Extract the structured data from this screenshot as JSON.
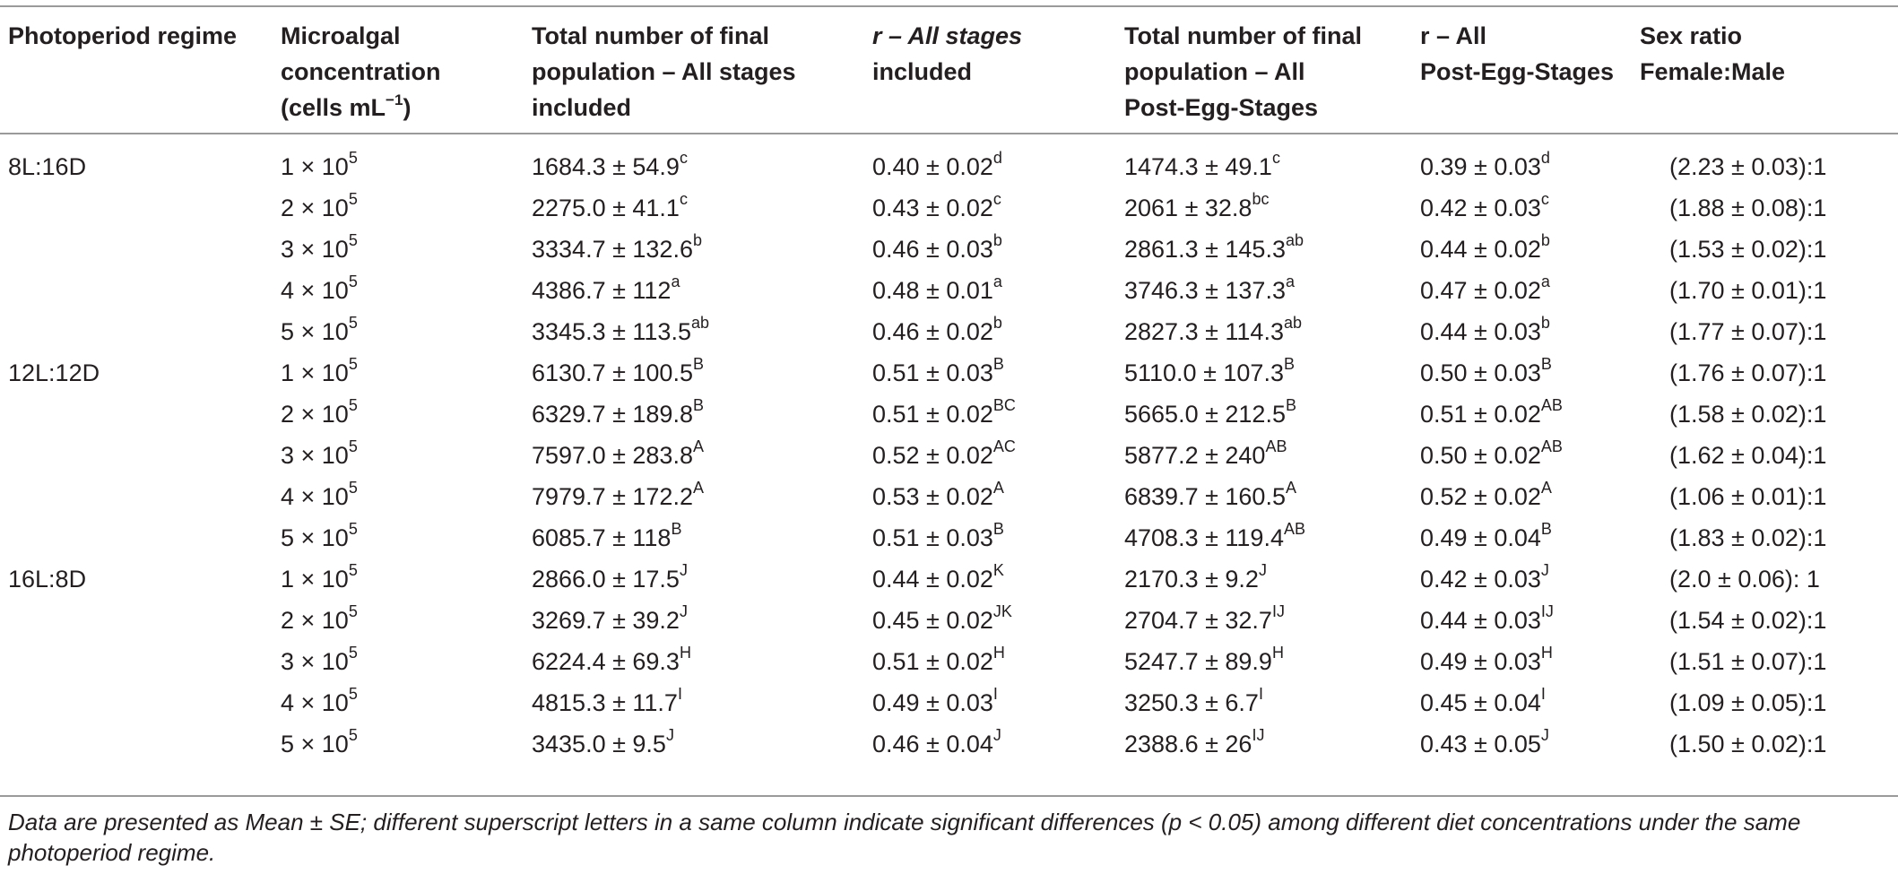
{
  "header": {
    "photoperiod": "Photoperiod regime",
    "concentration_line1": "Microalgal",
    "concentration_line2": "concentration",
    "concentration_line3_pre": "(cells mL",
    "concentration_line3_sup": "−1",
    "concentration_line3_post": ")",
    "total_all_line1": "Total number of final",
    "total_all_line2": "population – All stages",
    "total_all_line3": "included",
    "r_all_line1": "r – All stages",
    "r_all_line2": "included",
    "total_post_line1": "Total number of final",
    "total_post_line2": "population – All",
    "total_post_line3": "Post-Egg-Stages",
    "r_post_line1": "r – All",
    "r_post_line2": "Post-Egg-Stages",
    "sex_line1": "Sex ratio",
    "sex_line2": "Female:Male"
  },
  "rows": [
    {
      "regime": "8L:16D",
      "conc": "1 × 10",
      "conc_exp": "5",
      "total": "1684.3 ± 54.9",
      "total_sup": "c",
      "r": "0.40 ± 0.02",
      "r_sup": "d",
      "post": "1474.3 ± 49.1",
      "post_sup": "c",
      "rpost": "0.39 ± 0.03",
      "rpost_sup": "d",
      "sex": "(2.23 ± 0.03):1"
    },
    {
      "regime": "",
      "conc": "2 × 10",
      "conc_exp": "5",
      "total": "2275.0 ± 41.1",
      "total_sup": "c",
      "r": "0.43 ± 0.02",
      "r_sup": "c",
      "post": "2061 ± 32.8",
      "post_sup": "bc",
      "rpost": "0.42 ± 0.03",
      "rpost_sup": "c",
      "sex": "(1.88 ± 0.08):1"
    },
    {
      "regime": "",
      "conc": "3 × 10",
      "conc_exp": "5",
      "total": "3334.7 ± 132.6",
      "total_sup": "b",
      "r": "0.46 ± 0.03",
      "r_sup": "b",
      "post": "2861.3 ± 145.3",
      "post_sup": "ab",
      "rpost": "0.44 ± 0.02",
      "rpost_sup": "b",
      "sex": "(1.53 ± 0.02):1"
    },
    {
      "regime": "",
      "conc": "4 × 10",
      "conc_exp": "5",
      "total": "4386.7 ± 112",
      "total_sup": "a",
      "r": "0.48 ± 0.01",
      "r_sup": "a",
      "post": "3746.3 ± 137.3",
      "post_sup": "a",
      "rpost": "0.47 ± 0.02",
      "rpost_sup": "a",
      "sex": "(1.70 ± 0.01):1"
    },
    {
      "regime": "",
      "conc": "5 × 10",
      "conc_exp": "5",
      "total": "3345.3 ± 113.5",
      "total_sup": "ab",
      "r": "0.46 ± 0.02",
      "r_sup": "b",
      "post": "2827.3 ± 114.3",
      "post_sup": "ab",
      "rpost": "0.44 ± 0.03",
      "rpost_sup": "b",
      "sex": "(1.77 ± 0.07):1"
    },
    {
      "regime": "12L:12D",
      "conc": "1 × 10",
      "conc_exp": "5",
      "total": "6130.7 ± 100.5",
      "total_sup": "B",
      "r": "0.51 ± 0.03",
      "r_sup": "B",
      "post": "5110.0 ± 107.3",
      "post_sup": "B",
      "rpost": "0.50 ± 0.03",
      "rpost_sup": "B",
      "sex": "(1.76 ± 0.07):1"
    },
    {
      "regime": "",
      "conc": "2 × 10",
      "conc_exp": "5",
      "total": "6329.7 ± 189.8",
      "total_sup": "B",
      "r": "0.51 ± 0.02",
      "r_sup": "BC",
      "post": "5665.0 ± 212.5",
      "post_sup": "B",
      "rpost": "0.51 ± 0.02",
      "rpost_sup": "AB",
      "sex": "(1.58 ± 0.02):1"
    },
    {
      "regime": "",
      "conc": "3 × 10",
      "conc_exp": "5",
      "total": "7597.0 ± 283.8",
      "total_sup": "A",
      "r": "0.52 ± 0.02",
      "r_sup": "AC",
      "post": "5877.2 ± 240",
      "post_sup": "AB",
      "rpost": "0.50 ± 0.02",
      "rpost_sup": "AB",
      "sex": "(1.62 ± 0.04):1"
    },
    {
      "regime": "",
      "conc": "4 × 10",
      "conc_exp": "5",
      "total": "7979.7 ± 172.2",
      "total_sup": "A",
      "r": "0.53 ± 0.02",
      "r_sup": "A",
      "post": "6839.7 ± 160.5",
      "post_sup": "A",
      "rpost": "0.52 ± 0.02",
      "rpost_sup": "A",
      "sex": "(1.06 ± 0.01):1"
    },
    {
      "regime": "",
      "conc": "5 × 10",
      "conc_exp": "5",
      "total": "6085.7 ± 118",
      "total_sup": "B",
      "r": "0.51 ± 0.03",
      "r_sup": "B",
      "post": "4708.3 ± 119.4",
      "post_sup": "AB",
      "rpost": "0.49 ± 0.04",
      "rpost_sup": "B",
      "sex": "(1.83 ± 0.02):1"
    },
    {
      "regime": "16L:8D",
      "conc": "1 × 10",
      "conc_exp": "5",
      "total": "2866.0 ± 17.5",
      "total_sup": "J",
      "r": "0.44 ± 0.02",
      "r_sup": "K",
      "post": "2170.3 ± 9.2",
      "post_sup": "J",
      "rpost": "0.42 ± 0.03",
      "rpost_sup": "J",
      "sex": "(2.0 ± 0.06): 1"
    },
    {
      "regime": "",
      "conc": "2 × 10",
      "conc_exp": "5",
      "total": "3269.7 ± 39.2",
      "total_sup": "J",
      "r": "0.45 ± 0.02",
      "r_sup": "JK",
      "post": "2704.7 ± 32.7",
      "post_sup": "IJ",
      "rpost": "0.44 ± 0.03",
      "rpost_sup": "IJ",
      "sex": "(1.54 ± 0.02):1"
    },
    {
      "regime": "",
      "conc": "3 × 10",
      "conc_exp": "5",
      "total": "6224.4 ± 69.3",
      "total_sup": "H",
      "r": "0.51 ± 0.02",
      "r_sup": "H",
      "post": "5247.7 ± 89.9",
      "post_sup": "H",
      "rpost": "0.49 ± 0.03",
      "rpost_sup": "H",
      "sex": "(1.51 ± 0.07):1"
    },
    {
      "regime": "",
      "conc": "4 × 10",
      "conc_exp": "5",
      "total": "4815.3 ± 11.7",
      "total_sup": "I",
      "r": "0.49 ± 0.03",
      "r_sup": "I",
      "post": "3250.3 ± 6.7",
      "post_sup": "I",
      "rpost": "0.45 ± 0.04",
      "rpost_sup": "I",
      "sex": "(1.09 ± 0.05):1"
    },
    {
      "regime": "",
      "conc": "5 × 10",
      "conc_exp": "5",
      "total": "3435.0 ± 9.5",
      "total_sup": "J",
      "r": "0.46 ± 0.04",
      "r_sup": "J",
      "post": "2388.6 ± 26",
      "post_sup": "IJ",
      "rpost": "0.43 ± 0.05",
      "rpost_sup": "J",
      "sex": "(1.50 ± 0.02):1"
    }
  ],
  "footnote": "Data are presented as Mean ± SE; different superscript letters in a same column indicate significant differences (p < 0.05) among different diet concentrations under the same photoperiod regime."
}
